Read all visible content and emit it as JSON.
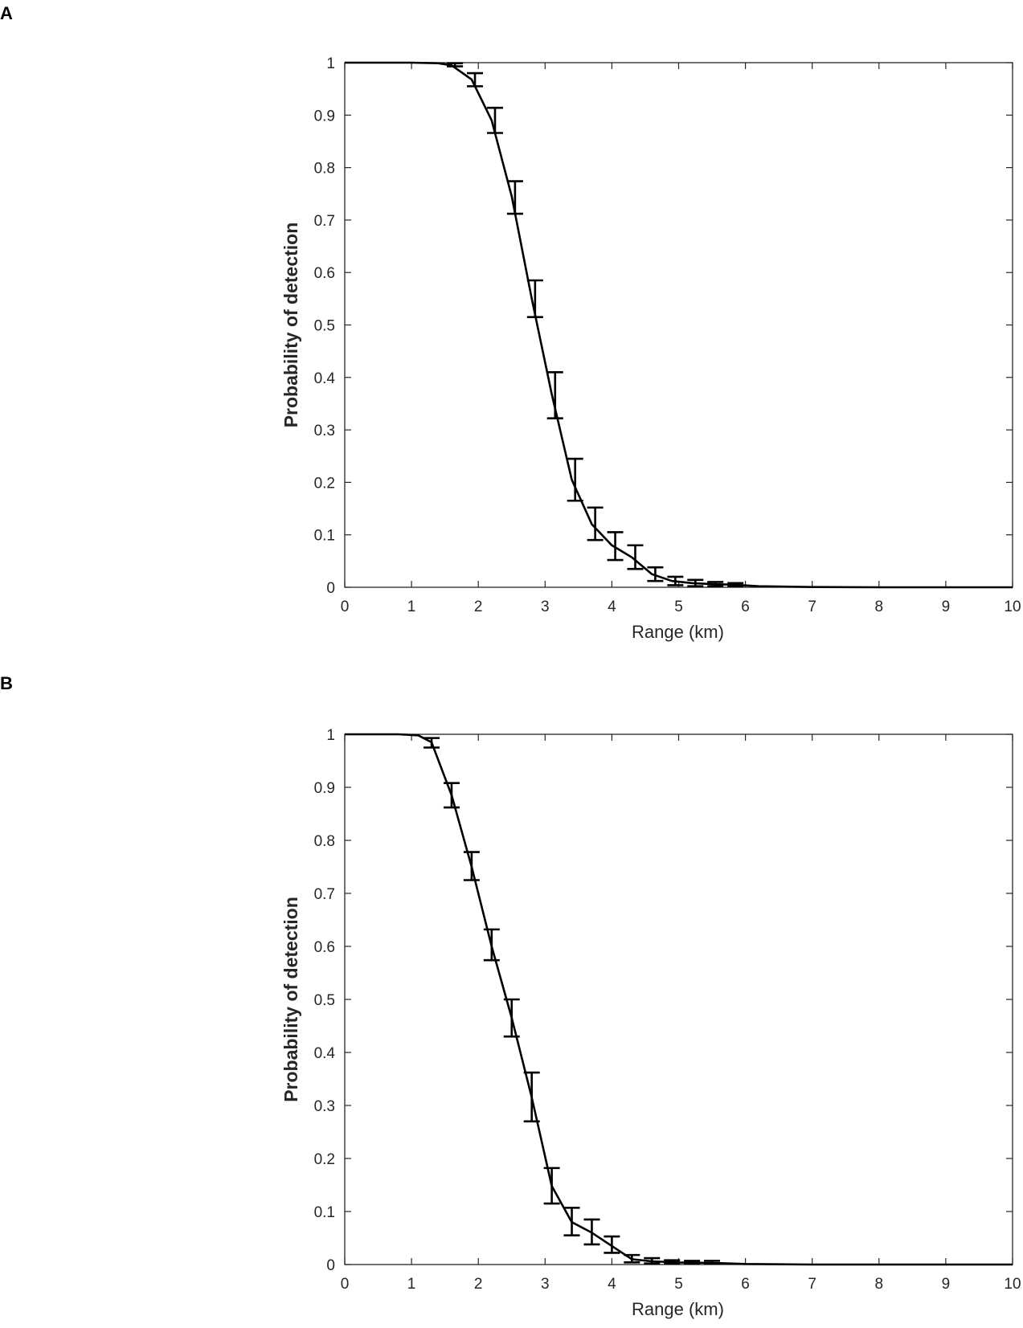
{
  "panels": [
    {
      "letter": "A"
    },
    {
      "letter": "B"
    }
  ],
  "chart_data": [
    {
      "type": "line",
      "title": "",
      "xlabel": "Range (km)",
      "ylabel": "Probability of detection",
      "xlim": [
        0,
        10
      ],
      "ylim": [
        0,
        1
      ],
      "x_ticks": [
        "0",
        "1",
        "2",
        "3",
        "4",
        "5",
        "6",
        "7",
        "8",
        "9",
        "10"
      ],
      "y_ticks": [
        "0",
        "0.1",
        "0.2",
        "0.3",
        "0.4",
        "0.5",
        "0.6",
        "0.7",
        "0.8",
        "0.9",
        "1"
      ],
      "grid": false,
      "line_color": "#000000",
      "x": [
        0,
        1.0,
        1.4,
        1.6,
        1.9,
        2.2,
        2.5,
        2.8,
        3.1,
        3.4,
        3.7,
        4.0,
        4.3,
        4.6,
        4.9,
        5.2,
        5.5,
        5.8,
        6.2,
        7.0,
        8.0,
        9.0,
        10.0
      ],
      "y": [
        1.0,
        1.0,
        0.999,
        0.995,
        0.968,
        0.89,
        0.745,
        0.55,
        0.368,
        0.205,
        0.12,
        0.08,
        0.057,
        0.025,
        0.012,
        0.008,
        0.006,
        0.005,
        0.002,
        0.0005,
        0.0,
        0.0,
        0.0
      ],
      "error_bars": [
        {
          "x": 1.65,
          "low": 0.993,
          "high": 0.999
        },
        {
          "x": 1.95,
          "low": 0.955,
          "high": 0.98
        },
        {
          "x": 2.25,
          "low": 0.866,
          "high": 0.914
        },
        {
          "x": 2.55,
          "low": 0.712,
          "high": 0.774
        },
        {
          "x": 2.85,
          "low": 0.515,
          "high": 0.585
        },
        {
          "x": 3.15,
          "low": 0.322,
          "high": 0.41
        },
        {
          "x": 3.45,
          "low": 0.165,
          "high": 0.245
        },
        {
          "x": 3.75,
          "low": 0.09,
          "high": 0.152
        },
        {
          "x": 4.05,
          "low": 0.052,
          "high": 0.105
        },
        {
          "x": 4.35,
          "low": 0.035,
          "high": 0.08
        },
        {
          "x": 4.65,
          "low": 0.012,
          "high": 0.038
        },
        {
          "x": 4.95,
          "low": 0.004,
          "high": 0.02
        },
        {
          "x": 5.25,
          "low": 0.002,
          "high": 0.014
        },
        {
          "x": 5.55,
          "low": 0.002,
          "high": 0.01
        },
        {
          "x": 5.85,
          "low": 0.002,
          "high": 0.008
        }
      ]
    },
    {
      "type": "line",
      "title": "",
      "xlabel": "Range (km)",
      "ylabel": "Probability of detection",
      "xlim": [
        0,
        10
      ],
      "ylim": [
        0,
        1
      ],
      "x_ticks": [
        "0",
        "1",
        "2",
        "3",
        "4",
        "5",
        "6",
        "7",
        "8",
        "9",
        "10"
      ],
      "y_ticks": [
        "0",
        "0.1",
        "0.2",
        "0.3",
        "0.4",
        "0.5",
        "0.6",
        "0.7",
        "0.8",
        "0.9",
        "1"
      ],
      "grid": false,
      "line_color": "#000000",
      "x": [
        0,
        0.8,
        1.1,
        1.3,
        1.6,
        1.9,
        2.2,
        2.5,
        2.8,
        3.1,
        3.4,
        3.7,
        4.0,
        4.3,
        4.6,
        5.0,
        5.5,
        6.0,
        7.0,
        8.0,
        9.0,
        10.0
      ],
      "y": [
        1.0,
        1.0,
        0.998,
        0.985,
        0.885,
        0.75,
        0.6,
        0.465,
        0.315,
        0.148,
        0.08,
        0.06,
        0.035,
        0.01,
        0.006,
        0.004,
        0.003,
        0.001,
        0.0,
        0.0,
        0.0,
        0.0
      ],
      "error_bars": [
        {
          "x": 1.3,
          "low": 0.975,
          "high": 0.993
        },
        {
          "x": 1.6,
          "low": 0.862,
          "high": 0.908
        },
        {
          "x": 1.9,
          "low": 0.725,
          "high": 0.778
        },
        {
          "x": 2.2,
          "low": 0.574,
          "high": 0.632
        },
        {
          "x": 2.5,
          "low": 0.43,
          "high": 0.5
        },
        {
          "x": 2.8,
          "low": 0.27,
          "high": 0.362
        },
        {
          "x": 3.1,
          "low": 0.115,
          "high": 0.182
        },
        {
          "x": 3.4,
          "low": 0.055,
          "high": 0.107
        },
        {
          "x": 3.7,
          "low": 0.038,
          "high": 0.085
        },
        {
          "x": 4.0,
          "low": 0.022,
          "high": 0.053
        },
        {
          "x": 4.3,
          "low": 0.004,
          "high": 0.018
        },
        {
          "x": 4.6,
          "low": 0.002,
          "high": 0.012
        },
        {
          "x": 4.9,
          "low": 0.002,
          "high": 0.008
        },
        {
          "x": 5.2,
          "low": 0.002,
          "high": 0.007
        },
        {
          "x": 5.5,
          "low": 0.002,
          "high": 0.007
        }
      ]
    }
  ]
}
